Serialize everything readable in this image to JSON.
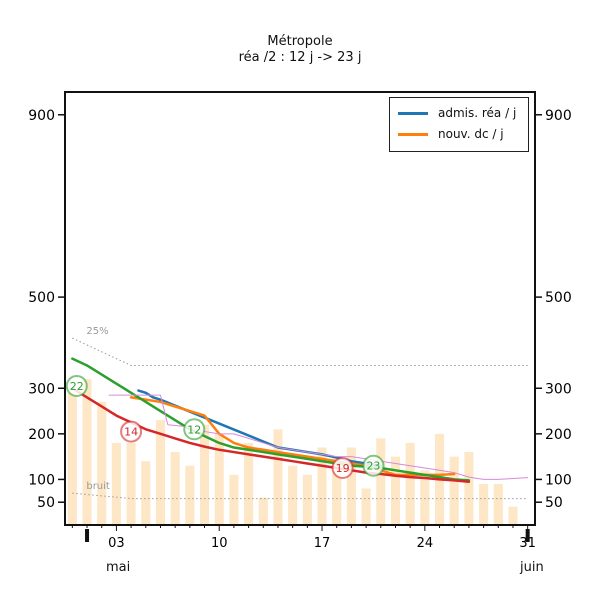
{
  "title": "Métropole",
  "subtitle": "réa /2 : 12 j -> 23 j",
  "month_labels": {
    "start": "mai",
    "end": "juin"
  },
  "colors": {
    "blue": "#1f77b4",
    "orange": "#ff7f0e",
    "green": "#2ca02c",
    "red": "#d62728",
    "bars": "#fde7c6",
    "violet": "#d58ad9"
  },
  "chart_data": {
    "type": "line",
    "x_ticks": [
      "03",
      "10",
      "17",
      "24",
      "31"
    ],
    "x_ticks_day": [
      3,
      10,
      17,
      24,
      31
    ],
    "xlim": [
      -0.5,
      31.5
    ],
    "ylim": [
      0,
      950
    ],
    "y_ticks": [
      "50",
      "100",
      "200",
      "300",
      "500",
      "900"
    ],
    "y_ticks_values": [
      50,
      100,
      200,
      300,
      500,
      900
    ],
    "grid": false,
    "legend_position": "top-right",
    "legend": [
      {
        "label": "admis. réa / j",
        "color": "#1f77b4"
      },
      {
        "label": "nouv. dc / j",
        "color": "#ff7f0e"
      }
    ],
    "reference_lines": [
      {
        "label": "25%",
        "x": [
          0,
          4,
          31
        ],
        "y": [
          410,
          350,
          350
        ]
      },
      {
        "label": "bruit",
        "x": [
          0,
          4,
          31
        ],
        "y": [
          70,
          58,
          58
        ]
      }
    ],
    "bars": {
      "x": [
        0,
        1,
        2,
        3,
        4,
        5,
        6,
        7,
        8,
        9,
        10,
        11,
        12,
        13,
        14,
        15,
        16,
        17,
        18,
        19,
        20,
        21,
        22,
        23,
        24,
        25,
        26,
        27,
        28,
        29,
        30
      ],
      "values": [
        290,
        320,
        270,
        180,
        180,
        140,
        230,
        160,
        130,
        220,
        200,
        110,
        180,
        60,
        210,
        130,
        110,
        170,
        150,
        170,
        80,
        190,
        150,
        180,
        120,
        200,
        150,
        160,
        90,
        90,
        40
      ]
    },
    "series": [
      {
        "name": "admis. réa / j",
        "color": "#1f77b4",
        "x": [
          4.5,
          5,
          5.5,
          6,
          14,
          15,
          16,
          17,
          18,
          19,
          20,
          21
        ],
        "y": [
          295,
          290,
          280,
          275,
          170,
          165,
          160,
          155,
          148,
          140,
          135,
          130
        ]
      },
      {
        "name": "nouv. dc / j",
        "color": "#ff7f0e",
        "x": [
          4,
          5,
          6,
          7,
          8,
          9,
          10,
          11,
          12,
          13,
          14,
          15,
          16,
          17,
          18,
          19,
          20,
          21,
          22,
          23,
          24,
          25,
          26
        ],
        "y": [
          280,
          275,
          270,
          260,
          250,
          240,
          200,
          180,
          170,
          165,
          160,
          155,
          150,
          145,
          140,
          135,
          130,
          120,
          110,
          110,
          110,
          110,
          112
        ]
      },
      {
        "name": "",
        "color": "#2ca02c",
        "x": [
          0,
          1,
          2,
          3,
          4,
          5,
          6,
          7,
          8,
          9,
          10,
          11,
          12,
          13,
          14,
          15,
          16,
          17,
          18,
          19,
          20,
          21,
          22,
          23,
          24,
          25,
          26,
          27
        ],
        "y": [
          365,
          350,
          330,
          310,
          290,
          270,
          250,
          230,
          210,
          195,
          180,
          170,
          165,
          160,
          155,
          150,
          145,
          140,
          135,
          130,
          128,
          125,
          120,
          115,
          110,
          105,
          100,
          98
        ]
      },
      {
        "name": "",
        "color": "#d62728",
        "x": [
          0,
          1,
          2,
          3,
          4,
          5,
          6,
          7,
          8,
          9,
          10,
          11,
          12,
          13,
          14,
          15,
          16,
          17,
          18,
          19,
          20,
          21,
          22,
          23,
          24,
          25,
          26,
          27
        ],
        "y": [
          300,
          280,
          260,
          240,
          225,
          210,
          200,
          190,
          180,
          172,
          165,
          160,
          155,
          150,
          145,
          140,
          135,
          130,
          125,
          120,
          115,
          112,
          108,
          105,
          103,
          100,
          98,
          95
        ]
      },
      {
        "name": "",
        "color": "#d58ad9",
        "x": [
          2.5,
          6,
          6.5,
          8,
          9,
          10,
          11,
          12,
          13,
          14,
          15,
          16,
          17,
          18,
          19,
          20,
          21,
          22,
          23,
          24,
          25,
          26,
          27,
          28,
          29,
          30,
          31
        ],
        "y": [
          285,
          285,
          220,
          215,
          205,
          200,
          200,
          190,
          180,
          170,
          165,
          160,
          155,
          150,
          150,
          145,
          140,
          135,
          130,
          125,
          120,
          115,
          105,
          100,
          100,
          102,
          104
        ]
      }
    ],
    "markers": [
      {
        "label": "22",
        "x": 0.3,
        "y": 305,
        "color": "#2ca02c"
      },
      {
        "label": "14",
        "x": 4,
        "y": 205,
        "color": "#d62728"
      },
      {
        "label": "12",
        "x": 8.3,
        "y": 210,
        "color": "#2ca02c"
      },
      {
        "label": "19",
        "x": 18.4,
        "y": 125,
        "color": "#d62728"
      },
      {
        "label": "23",
        "x": 20.5,
        "y": 130,
        "color": "#2ca02c"
      }
    ]
  }
}
